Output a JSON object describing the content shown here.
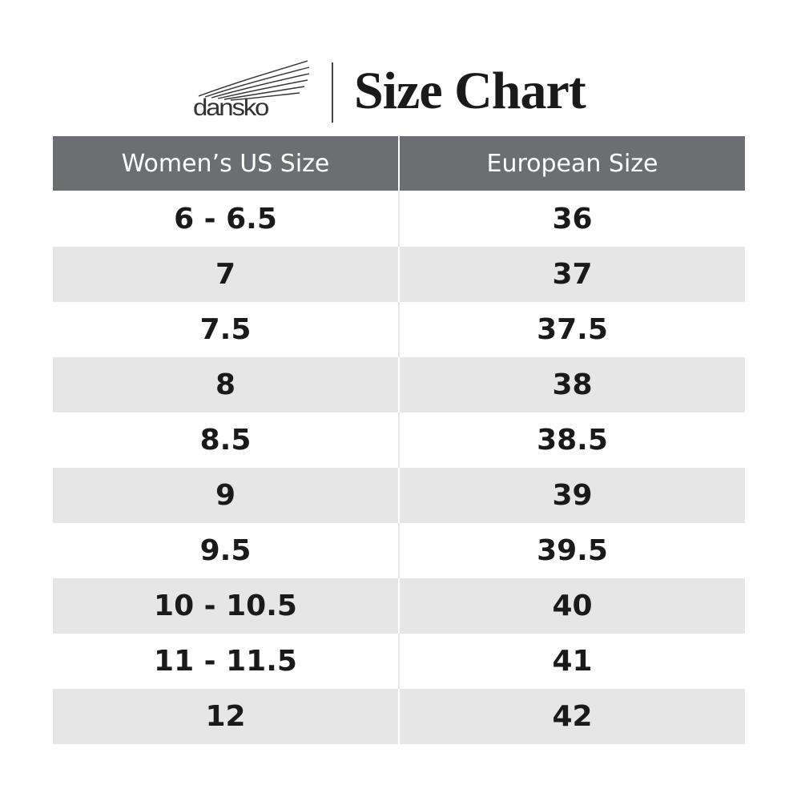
{
  "header": {
    "brand": "dansko",
    "title": "Size Chart"
  },
  "table": {
    "columns": [
      "Women’s US Size",
      "European Size"
    ],
    "rows": [
      [
        "6 - 6.5",
        "36"
      ],
      [
        "7",
        "37"
      ],
      [
        "7.5",
        "37.5"
      ],
      [
        "8",
        "38"
      ],
      [
        "8.5",
        "38.5"
      ],
      [
        "9",
        "39"
      ],
      [
        "9.5",
        "39.5"
      ],
      [
        "10 - 10.5",
        "40"
      ],
      [
        "11 - 11.5",
        "41"
      ],
      [
        "12",
        "42"
      ]
    ]
  }
}
